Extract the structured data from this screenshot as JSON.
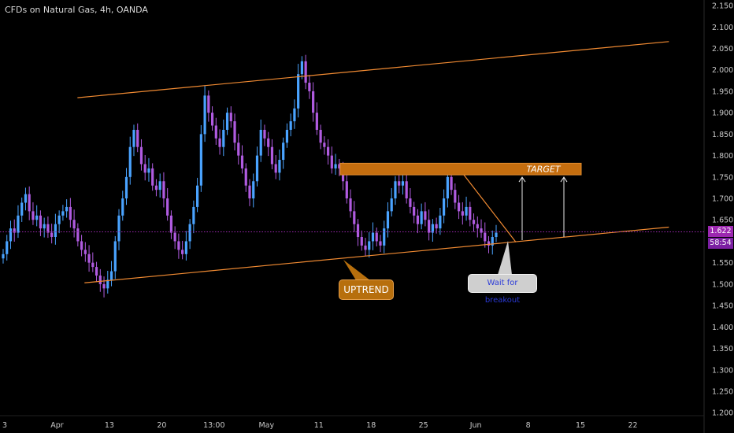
{
  "chart_data": {
    "type": "candlestick",
    "title": "CFDs on Natural Gas, 4h, OANDA",
    "y_axis": {
      "ticks": [
        2.15,
        2.1,
        2.05,
        2.0,
        1.95,
        1.9,
        1.85,
        1.8,
        1.75,
        1.7,
        1.65,
        1.6,
        1.55,
        1.5,
        1.45,
        1.4,
        1.35,
        1.3,
        1.25,
        1.2
      ],
      "tick_labels": [
        "2.150",
        "2.100",
        "2.050",
        "2.000",
        "1.950",
        "1.900",
        "1.850",
        "1.800",
        "1.750",
        "1.700",
        "1.650",
        "1.600",
        "1.550",
        "1.500",
        "1.450",
        "1.400",
        "1.350",
        "1.300",
        "1.250",
        "1.200"
      ],
      "ylim": [
        1.193,
        2.163
      ]
    },
    "x_axis": {
      "tick_labels": [
        "3",
        "Apr",
        "13",
        "20",
        "13:00",
        "May",
        "11",
        "18",
        "25",
        "Jun",
        "8",
        "15",
        "22"
      ]
    },
    "current_price": "1.622",
    "countdown": "58:54",
    "support_trendline": [
      [
        0.12,
        1.503
      ],
      [
        0.95,
        1.633
      ]
    ],
    "resistance_trendline": [
      [
        0.11,
        1.935
      ],
      [
        0.95,
        2.066
      ]
    ],
    "target_zone": {
      "low": 1.755,
      "high": 1.782,
      "label": "TARGET"
    },
    "annotations": {
      "uptrend": "UPTREND",
      "wait": "Wait for breakout"
    },
    "candles_close": [
      1.57,
      1.6,
      1.63,
      1.62,
      1.66,
      1.69,
      1.71,
      1.67,
      1.65,
      1.66,
      1.63,
      1.64,
      1.62,
      1.61,
      1.64,
      1.66,
      1.67,
      1.68,
      1.65,
      1.63,
      1.6,
      1.58,
      1.57,
      1.55,
      1.54,
      1.52,
      1.5,
      1.49,
      1.51,
      1.53,
      1.6,
      1.66,
      1.7,
      1.75,
      1.82,
      1.86,
      1.82,
      1.78,
      1.76,
      1.77,
      1.73,
      1.72,
      1.74,
      1.7,
      1.66,
      1.62,
      1.6,
      1.58,
      1.57,
      1.6,
      1.64,
      1.68,
      1.73,
      1.85,
      1.94,
      1.9,
      1.87,
      1.84,
      1.82,
      1.86,
      1.9,
      1.88,
      1.83,
      1.8,
      1.77,
      1.73,
      1.7,
      1.74,
      1.8,
      1.86,
      1.84,
      1.82,
      1.78,
      1.76,
      1.79,
      1.83,
      1.86,
      1.88,
      1.91,
      1.99,
      2.02,
      1.97,
      1.95,
      1.9,
      1.86,
      1.83,
      1.82,
      1.8,
      1.77,
      1.78,
      1.77,
      1.74,
      1.7,
      1.67,
      1.64,
      1.61,
      1.59,
      1.58,
      1.6,
      1.62,
      1.6,
      1.59,
      1.63,
      1.67,
      1.7,
      1.74,
      1.73,
      1.74,
      1.7,
      1.68,
      1.66,
      1.64,
      1.67,
      1.65,
      1.62,
      1.64,
      1.63,
      1.66,
      1.7,
      1.75,
      1.72,
      1.69,
      1.67,
      1.66,
      1.68,
      1.65,
      1.64,
      1.63,
      1.62,
      1.6,
      1.59,
      1.61,
      1.62
    ]
  }
}
